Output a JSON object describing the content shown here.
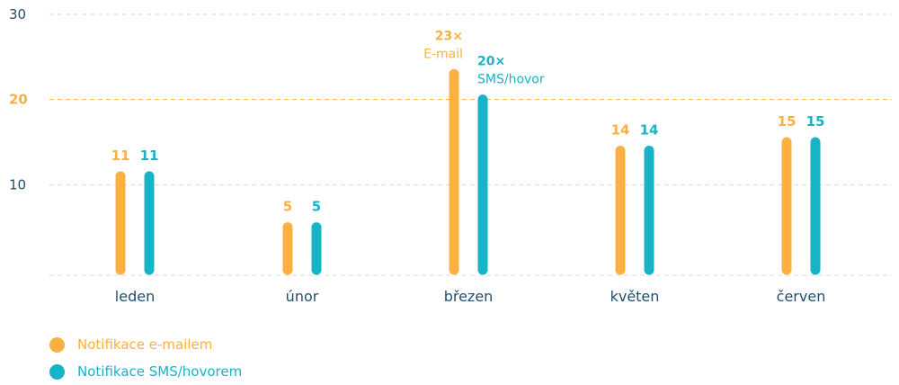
{
  "chart_data": {
    "type": "bar",
    "categories": [
      "leden",
      "únor",
      "březen",
      "květen",
      "červen"
    ],
    "series": [
      {
        "name": "Notifikace e-mailem",
        "values": [
          11,
          5,
          23,
          14,
          15
        ],
        "color": "#FBB040"
      },
      {
        "name": "Notifikace SMS/hovorem",
        "values": [
          11,
          5,
          20,
          14,
          15
        ],
        "color": "#17B3C6"
      }
    ],
    "data_labels": [
      [
        "11",
        "5",
        "23×",
        "14",
        "15"
      ],
      [
        "11",
        "5",
        "20×",
        "14",
        "15"
      ]
    ],
    "label_suffixes": [
      [
        "",
        "",
        "E-mail",
        "",
        ""
      ],
      [
        "",
        "",
        "SMS/hovor",
        "",
        ""
      ]
    ],
    "yticks": [
      10,
      20,
      30
    ],
    "highlight_tick": 20,
    "ylim": [
      0,
      30
    ],
    "grid": true,
    "legend_position": "bottom-left",
    "tick_color": "#1F4E6B",
    "highlight_color": "#FBB040"
  }
}
